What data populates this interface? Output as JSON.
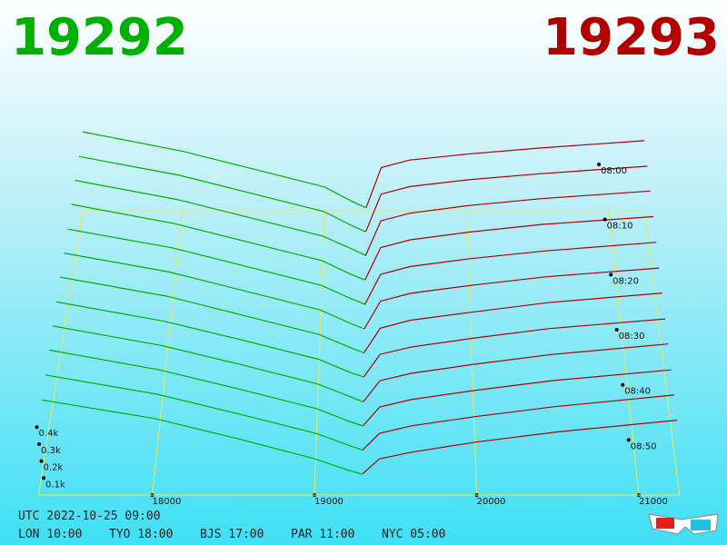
{
  "chart_data": {
    "type": "depth3d",
    "best_bid": 19292,
    "best_ask": 19293,
    "bid_color": "#00b000",
    "ask_color": "#b00000",
    "xlim": [
      17300,
      21250
    ],
    "xticks": [
      18000,
      19000,
      20000,
      21000
    ],
    "ylim": [
      0,
      550
    ],
    "yticks": [
      {
        "value": 100,
        "label": "0.1k"
      },
      {
        "value": 200,
        "label": "0.2k"
      },
      {
        "value": 300,
        "label": "0.3k"
      },
      {
        "value": 400,
        "label": "0.4k"
      }
    ],
    "zlim": [
      "08:00",
      "08:59"
    ],
    "zticks": [
      "08:00",
      "08:10",
      "08:20",
      "08:30",
      "08:40",
      "08:50"
    ],
    "bid_prices": [
      19292,
      19200,
      19000,
      18500,
      18000,
      17300
    ],
    "ask_prices": [
      19293,
      19400,
      19600,
      20000,
      20500,
      21250
    ],
    "snapshots": [
      {
        "time": "08:00",
        "bids": [
          20,
          60,
          160,
          280,
          400,
          530
        ],
        "asks": [
          20,
          290,
          340,
          380,
          420,
          470
        ]
      },
      {
        "time": "08:05",
        "bids": [
          20,
          60,
          155,
          275,
          395,
          520
        ],
        "asks": [
          20,
          270,
          320,
          365,
          405,
          455
        ]
      },
      {
        "time": "08:10",
        "bids": [
          25,
          65,
          150,
          270,
          390,
          515
        ],
        "asks": [
          20,
          250,
          300,
          350,
          395,
          445
        ]
      },
      {
        "time": "08:15",
        "bids": [
          20,
          55,
          145,
          265,
          385,
          510
        ],
        "asks": [
          20,
          230,
          280,
          330,
          380,
          430
        ]
      },
      {
        "time": "08:20",
        "bids": [
          20,
          55,
          140,
          260,
          380,
          500
        ],
        "asks": [
          15,
          210,
          260,
          310,
          360,
          415
        ]
      },
      {
        "time": "08:25",
        "bids": [
          15,
          50,
          135,
          255,
          375,
          495
        ],
        "asks": [
          15,
          190,
          240,
          290,
          345,
          400
        ]
      },
      {
        "time": "08:30",
        "bids": [
          15,
          50,
          130,
          250,
          370,
          490
        ],
        "asks": [
          15,
          170,
          220,
          270,
          330,
          390
        ]
      },
      {
        "time": "08:35",
        "bids": [
          15,
          45,
          125,
          245,
          360,
          480
        ],
        "asks": [
          15,
          155,
          200,
          255,
          315,
          375
        ]
      },
      {
        "time": "08:40",
        "bids": [
          10,
          45,
          120,
          240,
          355,
          475
        ],
        "asks": [
          10,
          140,
          185,
          240,
          300,
          365
        ]
      },
      {
        "time": "08:45",
        "bids": [
          10,
          40,
          115,
          235,
          350,
          470
        ],
        "asks": [
          10,
          125,
          170,
          225,
          285,
          350
        ]
      },
      {
        "time": "08:50",
        "bids": [
          10,
          40,
          110,
          230,
          345,
          460
        ],
        "asks": [
          10,
          110,
          155,
          210,
          270,
          340
        ]
      },
      {
        "time": "08:55",
        "bids": [
          10,
          35,
          100,
          225,
          340,
          450
        ],
        "asks": [
          10,
          100,
          140,
          200,
          260,
          330
        ]
      }
    ],
    "clock": "UTC 2022-10-25 09:00",
    "cities": [
      "LON 10:00",
      "TYO 18:00",
      "BJS 17:00",
      "PAR 11:00",
      "NYC 05:00"
    ]
  }
}
